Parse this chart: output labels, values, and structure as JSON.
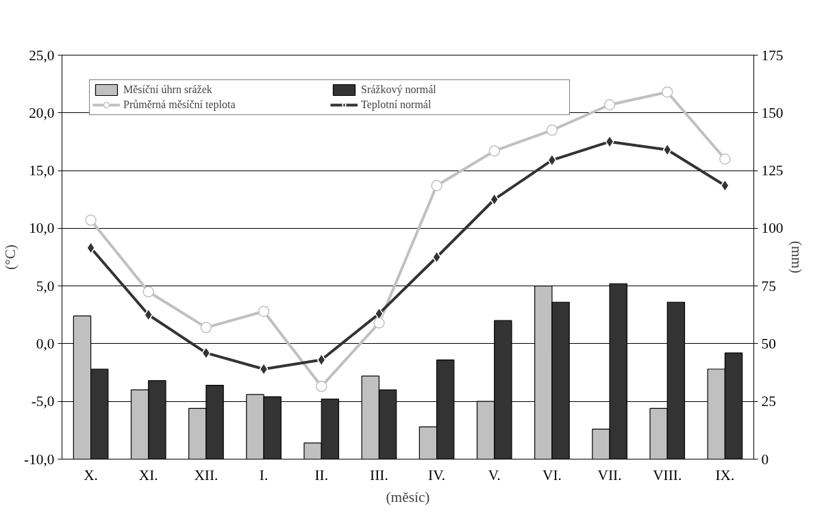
{
  "chart_data": {
    "type": "bar",
    "xlabel": "(měsíc)",
    "ylabel": "(°C)",
    "y2label": "(mm)",
    "categories": [
      "X.",
      "XI.",
      "XII.",
      "I.",
      "II.",
      "III.",
      "IV.",
      "V.",
      "VI.",
      "VII.",
      "VIII.",
      "IX."
    ],
    "series": [
      {
        "name": "Měsíční úhrn srážek",
        "axis": "y2",
        "color": "#c0c0c0",
        "values": [
          62,
          30,
          22,
          28,
          7,
          36,
          14,
          25,
          75,
          13,
          22,
          39
        ]
      },
      {
        "name": "Srážkový normál",
        "axis": "y2",
        "color": "#333333",
        "values": [
          39,
          34,
          32,
          27,
          26,
          30,
          43,
          60,
          68,
          76,
          68,
          46
        ]
      },
      {
        "name": "Průměrná měsíční teplota",
        "type": "line",
        "axis": "y",
        "color": "#c0c0c0",
        "marker": "circle",
        "values": [
          10.7,
          4.5,
          1.4,
          2.8,
          -3.7,
          1.8,
          13.7,
          16.7,
          18.5,
          20.7,
          21.8,
          16.0
        ]
      },
      {
        "name": "Teplotní normál",
        "type": "line",
        "axis": "y",
        "color": "#333333",
        "marker": "diamond",
        "values": [
          8.3,
          2.5,
          -0.8,
          -2.2,
          -1.4,
          2.6,
          7.5,
          12.5,
          15.9,
          17.5,
          16.8,
          13.7
        ]
      }
    ],
    "ylim": [
      -10,
      25
    ],
    "yticks": [
      {
        "value": -10,
        "label": "-10,0"
      },
      {
        "value": -5,
        "label": "-5,0"
      },
      {
        "value": 0,
        "label": "0,0"
      },
      {
        "value": 5,
        "label": "5,0"
      },
      {
        "value": 10,
        "label": "10,0"
      },
      {
        "value": 15,
        "label": "15,0"
      },
      {
        "value": 20,
        "label": "20,0"
      },
      {
        "value": 25,
        "label": "25,0"
      }
    ],
    "y2lim": [
      0,
      175
    ],
    "y2ticks": [
      0,
      25,
      50,
      75,
      100,
      125,
      150,
      175
    ],
    "grid": "y",
    "legend": "top"
  }
}
